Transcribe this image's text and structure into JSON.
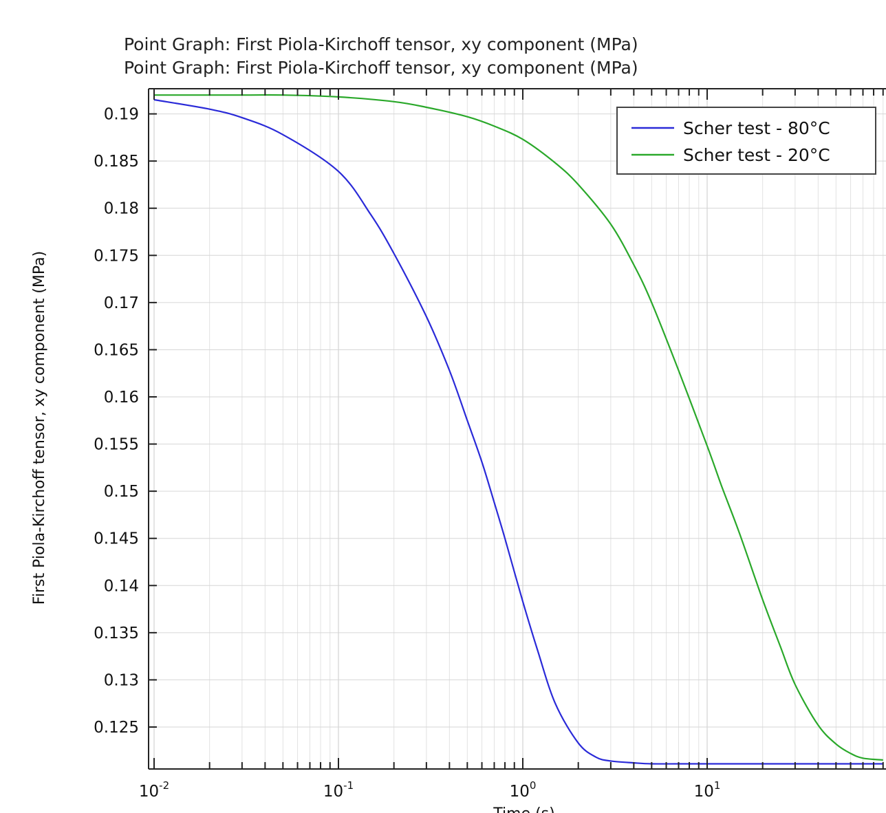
{
  "chart_data": {
    "type": "line",
    "titles": [
      "Point Graph: First Piola-Kirchoff tensor, xy component (MPa)",
      "Point Graph: First Piola-Kirchoff tensor, xy component (MPa)"
    ],
    "xlabel": "Time (s)",
    "ylabel": "First Piola-Kirchoff tensor, xy component (MPa)",
    "xscale": "log",
    "xlim": [
      0.01,
      90
    ],
    "ylim": [
      0.121,
      0.1927
    ],
    "yticks": [
      0.125,
      0.13,
      0.135,
      0.14,
      0.145,
      0.15,
      0.155,
      0.16,
      0.165,
      0.17,
      0.175,
      0.18,
      0.185,
      0.19
    ],
    "ytick_labels": [
      "0.125",
      "0.13",
      "0.135",
      "0.14",
      "0.145",
      "0.15",
      "0.155",
      "0.16",
      "0.165",
      "0.17",
      "0.175",
      "0.18",
      "0.185",
      "0.19"
    ],
    "xticks": [
      {
        "value": 0.01,
        "base": "10",
        "exp": "-2"
      },
      {
        "value": 0.1,
        "base": "10",
        "exp": "-1"
      },
      {
        "value": 1,
        "base": "10",
        "exp": "0"
      },
      {
        "value": 10,
        "base": "10",
        "exp": "1"
      }
    ],
    "grid": true,
    "legend_position": "top-right",
    "series": [
      {
        "name": "Scher test - 80°C",
        "color": "#2a2ad8",
        "x": [
          0.01,
          0.02,
          0.03,
          0.05,
          0.1,
          0.15,
          0.2,
          0.3,
          0.4,
          0.5,
          0.6,
          0.7,
          0.8,
          1.0,
          1.2,
          1.5,
          2.0,
          2.5,
          3.0,
          4.0,
          5.0,
          7.0,
          10,
          20,
          50,
          90
        ],
        "y": [
          0.1915,
          0.1905,
          0.1896,
          0.1878,
          0.1839,
          0.1793,
          0.1752,
          0.1685,
          0.1628,
          0.1575,
          0.1531,
          0.1488,
          0.145,
          0.1383,
          0.1332,
          0.1275,
          0.1233,
          0.1218,
          0.1214,
          0.1212,
          0.1211,
          0.1211,
          0.1211,
          0.1211,
          0.1211,
          0.1211
        ]
      },
      {
        "name": "Scher test - 20°C",
        "color": "#2aa82a",
        "x": [
          0.01,
          0.03,
          0.05,
          0.1,
          0.2,
          0.3,
          0.5,
          0.7,
          1.0,
          1.5,
          2.0,
          3.0,
          4.0,
          5.0,
          7.0,
          10,
          12,
          15,
          20,
          25,
          30,
          40,
          50,
          60,
          70,
          90
        ],
        "y": [
          0.192,
          0.192,
          0.192,
          0.1918,
          0.1913,
          0.1907,
          0.1897,
          0.1887,
          0.1873,
          0.1848,
          0.1825,
          0.1783,
          0.174,
          0.17,
          0.1628,
          0.1548,
          0.1505,
          0.1455,
          0.1385,
          0.1335,
          0.1295,
          0.1252,
          0.1232,
          0.1222,
          0.1217,
          0.1215
        ]
      }
    ]
  }
}
